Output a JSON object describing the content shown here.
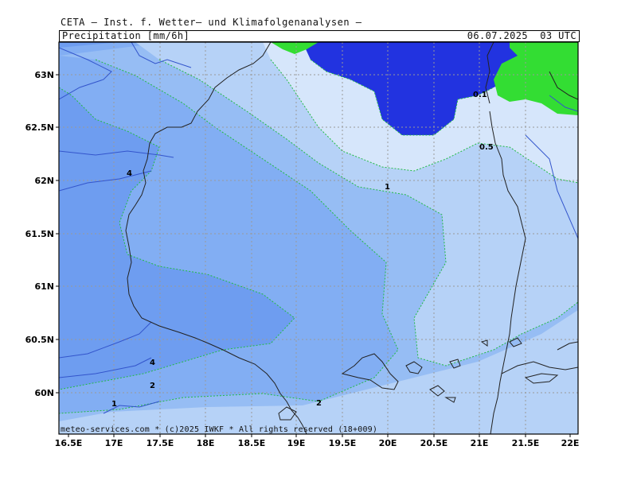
{
  "header": {
    "title": "CETA — Inst. f. Wetter— und Klimafolgenanalysen —",
    "parameter": "Precipitation [mm/6h]",
    "valid_time": "06.07.2025  03 UTC"
  },
  "footer": {
    "credit": "meteo-services.com * (c)2025 IWKF * All rights reserved (18+009)"
  },
  "map": {
    "longitude_labels": [
      "16.5E",
      "17E",
      "17.5E",
      "18E",
      "18.5E",
      "19E",
      "19.5E",
      "20E",
      "20.5E",
      "21E",
      "21.5E",
      "22E"
    ],
    "latitude_labels": [
      "63N",
      "62.5N",
      "62N",
      "61.5N",
      "61N",
      "60.5N",
      "60N"
    ],
    "contour_labels": {
      "c01": "0.1",
      "c05": "0.5",
      "c1a": "1",
      "c1b": "1",
      "c2a": "2",
      "c2b": "2",
      "c4a": "4",
      "c4b": "4"
    },
    "colors": {
      "dry_green": "#33dd33",
      "deep_blue": "#2233e0",
      "lightest": "#d6e6fb",
      "light": "#b6d2f7",
      "medium": "#96bdf4",
      "mid": "#82aef3",
      "dark": "#6e9df0",
      "land_outline": "#222222",
      "rivers": "#3355cc",
      "contour_line": "#22bb44",
      "grid": "#999999"
    }
  }
}
